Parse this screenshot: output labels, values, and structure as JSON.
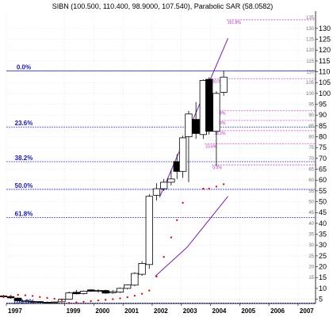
{
  "chart_data": {
    "type": "candlestick",
    "title": "SIBN (100.500, 110.400, 98.9000, 107.540), Parabolic SAR (58.0582)",
    "indicator": "Parabolic SAR",
    "ylim": [
      3,
      138
    ],
    "xlim": [
      1997,
      2007.6
    ],
    "yaxis_side": "right",
    "grid": true,
    "y_ticks_major": [
      5,
      10,
      15,
      20,
      25,
      30,
      35,
      40,
      45,
      50,
      55,
      60,
      65,
      70,
      75,
      80,
      85,
      90,
      95,
      100,
      105,
      110,
      115,
      120,
      125,
      130
    ],
    "y_ticks_minor": [
      15,
      20,
      25,
      30,
      35,
      40,
      45,
      50,
      55,
      60,
      65,
      70,
      75,
      80,
      85,
      90,
      95,
      100,
      105,
      110,
      115,
      120,
      125,
      130,
      135
    ],
    "x_ticks": [
      {
        "label": "1997",
        "x": 1997
      },
      {
        "label": "1999",
        "x": 1999
      },
      {
        "label": "2000",
        "x": 2000
      },
      {
        "label": "2001",
        "x": 2001
      },
      {
        "label": "2002",
        "x": 2002
      },
      {
        "label": "2003",
        "x": 2003
      },
      {
        "label": "2004",
        "x": 2004
      },
      {
        "label": "2005",
        "x": 2005
      },
      {
        "label": "2006",
        "x": 2006
      },
      {
        "label": "2007",
        "x": 2007
      }
    ],
    "candles": [
      {
        "t": 1996.9,
        "o": 6.5,
        "h": 7,
        "l": 5.5,
        "c": 6.3
      },
      {
        "t": 1997.15,
        "o": 6.2,
        "h": 6.8,
        "l": 5.2,
        "c": 5.6
      },
      {
        "t": 1997.4,
        "o": 5.5,
        "h": 5.8,
        "l": 4.0,
        "c": 4.3
      },
      {
        "t": 1997.65,
        "o": 4.2,
        "h": 4.6,
        "l": 3.6,
        "c": 4.2
      },
      {
        "t": 1997.9,
        "o": 4.0,
        "h": 4.4,
        "l": 3.5,
        "c": 3.9
      },
      {
        "t": 1998.15,
        "o": 3.9,
        "h": 4.1,
        "l": 3.3,
        "c": 3.6
      },
      {
        "t": 1998.4,
        "o": 3.6,
        "h": 3.9,
        "l": 3.2,
        "c": 3.5
      },
      {
        "t": 1998.65,
        "o": 3.5,
        "h": 3.9,
        "l": 3.2,
        "c": 3.7
      },
      {
        "t": 1998.9,
        "o": 3.8,
        "h": 5.2,
        "l": 3.5,
        "c": 5.0
      },
      {
        "t": 1999.15,
        "o": 5.0,
        "h": 8.5,
        "l": 4.8,
        "c": 7.9
      },
      {
        "t": 1999.4,
        "o": 8.2,
        "h": 9.3,
        "l": 7.2,
        "c": 7.5
      },
      {
        "t": 1999.65,
        "o": 7.6,
        "h": 9.0,
        "l": 7.2,
        "c": 8.7
      },
      {
        "t": 1999.9,
        "o": 9.3,
        "h": 9.6,
        "l": 8.4,
        "c": 8.7
      },
      {
        "t": 2000.15,
        "o": 8.7,
        "h": 9.6,
        "l": 8.0,
        "c": 9.0
      },
      {
        "t": 2000.4,
        "o": 9.0,
        "h": 9.4,
        "l": 7.5,
        "c": 7.8
      },
      {
        "t": 2000.65,
        "o": 8.0,
        "h": 9.2,
        "l": 7.5,
        "c": 8.5
      },
      {
        "t": 2000.9,
        "o": 8.3,
        "h": 10.4,
        "l": 7.8,
        "c": 10.0
      },
      {
        "t": 2001.15,
        "o": 10.0,
        "h": 11.8,
        "l": 9.5,
        "c": 11.6
      },
      {
        "t": 2001.4,
        "o": 11.5,
        "h": 17.5,
        "l": 11.0,
        "c": 16.9
      },
      {
        "t": 2001.65,
        "o": 16.5,
        "h": 22.5,
        "l": 15.8,
        "c": 21.5
      },
      {
        "t": 2001.9,
        "o": 21.0,
        "h": 53.5,
        "l": 19.0,
        "c": 52.5
      },
      {
        "t": 2002.15,
        "o": 53.0,
        "h": 58.5,
        "l": 50.5,
        "c": 56.0
      },
      {
        "t": 2002.4,
        "o": 56.0,
        "h": 60.5,
        "l": 55.0,
        "c": 59.0
      },
      {
        "t": 2002.65,
        "o": 59.0,
        "h": 64.5,
        "l": 57.5,
        "c": 60.5
      },
      {
        "t": 2002.85,
        "o": 68.5,
        "h": 72.0,
        "l": 60.5,
        "c": 64.0
      },
      {
        "t": 2003.05,
        "o": 64.0,
        "h": 80.5,
        "l": 61.0,
        "c": 79.5
      },
      {
        "t": 2003.25,
        "o": 80.0,
        "h": 92.0,
        "l": 59.0,
        "c": 90.5
      },
      {
        "t": 2003.5,
        "o": 88.0,
        "h": 96.0,
        "l": 79.0,
        "c": 81.5
      },
      {
        "t": 2003.75,
        "o": 81.0,
        "h": 106.5,
        "l": 79.0,
        "c": 106.0
      },
      {
        "t": 2003.95,
        "o": 106.5,
        "h": 107.5,
        "l": 81.0,
        "c": 82.5
      },
      {
        "t": 2004.2,
        "o": 82.5,
        "h": 101.0,
        "l": 66.5,
        "c": 100.0
      },
      {
        "t": 2004.45,
        "o": 100.5,
        "h": 110.4,
        "l": 98.9,
        "c": 107.54
      }
    ],
    "parabolic_sar": [
      {
        "t": 1996.9,
        "v": 6.0
      },
      {
        "t": 1997.15,
        "v": 6.5
      },
      {
        "t": 1997.4,
        "v": 7.0
      },
      {
        "t": 1997.65,
        "v": 6.8
      },
      {
        "t": 1997.9,
        "v": 6.5
      },
      {
        "t": 1998.15,
        "v": 6.0
      },
      {
        "t": 1998.4,
        "v": 5.6
      },
      {
        "t": 1998.65,
        "v": 5.2
      },
      {
        "t": 1998.9,
        "v": 4.6
      },
      {
        "t": 1999.15,
        "v": 3.3
      },
      {
        "t": 1999.4,
        "v": 3.5
      },
      {
        "t": 1999.65,
        "v": 3.8
      },
      {
        "t": 1999.9,
        "v": 4.1
      },
      {
        "t": 2000.15,
        "v": 4.4
      },
      {
        "t": 2000.4,
        "v": 4.7
      },
      {
        "t": 2000.65,
        "v": 5.0
      },
      {
        "t": 2000.9,
        "v": 5.4
      },
      {
        "t": 2001.15,
        "v": 5.9
      },
      {
        "t": 2001.4,
        "v": 6.6
      },
      {
        "t": 2001.65,
        "v": 7.5
      },
      {
        "t": 2001.9,
        "v": 9.0
      },
      {
        "t": 2002.15,
        "v": 15.5
      },
      {
        "t": 2002.4,
        "v": 24.5
      },
      {
        "t": 2002.65,
        "v": 33.5
      },
      {
        "t": 2002.85,
        "v": 41.5
      },
      {
        "t": 2003.05,
        "v": 49.5
      },
      {
        "t": 2003.75,
        "v": 56.0
      },
      {
        "t": 2003.95,
        "v": 56.0
      },
      {
        "t": 2004.2,
        "v": 57.0
      },
      {
        "t": 2004.45,
        "v": 58.06
      }
    ],
    "trendlines": [
      {
        "name": "upper-trendline",
        "color": "#7a1ea8",
        "points": [
          [
            2002.25,
            52
          ],
          [
            2004.6,
            125.5
          ]
        ]
      },
      {
        "name": "lower-trendline",
        "color": "#7a1ea8",
        "points": [
          [
            2002.1,
            15.5
          ],
          [
            2003.2,
            29
          ],
          [
            2004.6,
            52.5
          ]
        ]
      }
    ],
    "fib_retracements": [
      {
        "label": "0.0%",
        "value": 110.4
      },
      {
        "label": "23.6%",
        "value": 84.5
      },
      {
        "label": "38.2%",
        "value": 68.5
      },
      {
        "label": "50.0%",
        "value": 55.7
      },
      {
        "label": "61.8%",
        "value": 42.7
      },
      {
        "label": "100.0%",
        "value": 3.2
      }
    ],
    "fib_extensions": [
      {
        "label": "161.8%",
        "value": 134.0,
        "x": 2004.55
      },
      {
        "label": "100.0%",
        "value": 106.8,
        "x": 2003.95
      },
      {
        "label": "61.8%",
        "value": 92.0,
        "x": 2004.1
      },
      {
        "label": "50.0%",
        "value": 87.5,
        "x": 2004.1
      },
      {
        "label": "38.2%",
        "value": 82.8,
        "x": 2004.1
      },
      {
        "label": "23.6%",
        "value": 76.8,
        "x": 2003.8
      },
      {
        "label": "0.0%",
        "value": 67.0,
        "x": 2004.05
      }
    ],
    "colors": {
      "fib_line": "#3b3bd6",
      "fib_text": "#1a1aa0",
      "ext_line": "#c545c5",
      "sar_dot": "#e01010",
      "trendline": "#7a1ea8",
      "candle_up": "#ffffff",
      "candle_down": "#000000",
      "grid": "#d4d4d4"
    }
  }
}
